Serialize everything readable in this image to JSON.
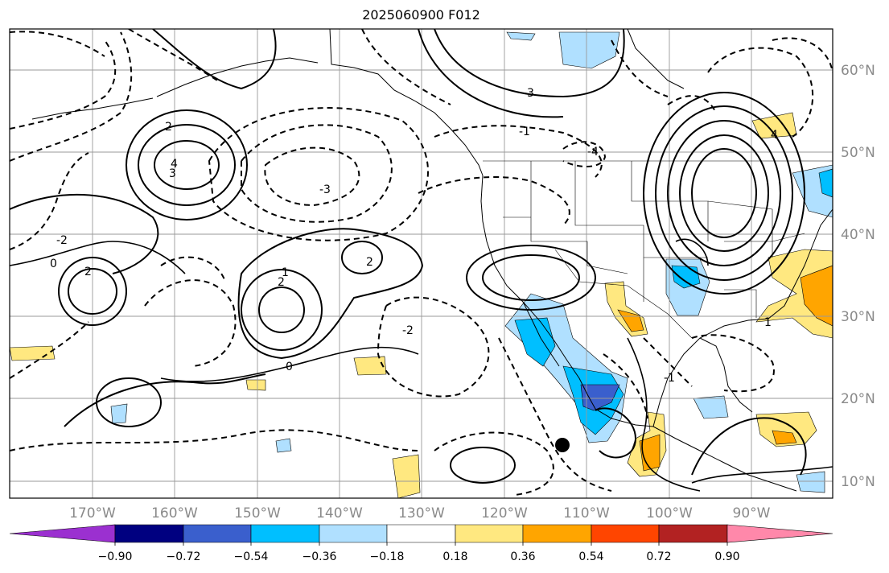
{
  "title": "2025060900 F012",
  "lon_ticks": [
    "170°W",
    "160°W",
    "150°W",
    "140°W",
    "130°W",
    "120°W",
    "110°W",
    "100°W",
    "90°W"
  ],
  "lat_ticks": [
    "10°N",
    "20°N",
    "30°N",
    "40°N",
    "50°N",
    "60°N"
  ],
  "colorbar": {
    "ticks": [
      "−0.90",
      "−0.72",
      "−0.54",
      "−0.36",
      "−0.18",
      "0.18",
      "0.36",
      "0.54",
      "0.72",
      "0.90"
    ],
    "colors": [
      "#9b30d0",
      "#000080",
      "#3a5fcd",
      "#00bfff",
      "#b0e0ff",
      "#ffffff",
      "#ffe880",
      "#ffa500",
      "#ff4500",
      "#b22222",
      "#ff88aa"
    ]
  },
  "contour_labels": [
    "2",
    "3",
    "4",
    "-2",
    "-3",
    "-4",
    "0",
    "1",
    "-1",
    "2",
    "-2",
    "0",
    "2",
    "2",
    "-3",
    "4",
    "-1",
    "1"
  ],
  "marker": {
    "label": "",
    "color": "#000000"
  }
}
